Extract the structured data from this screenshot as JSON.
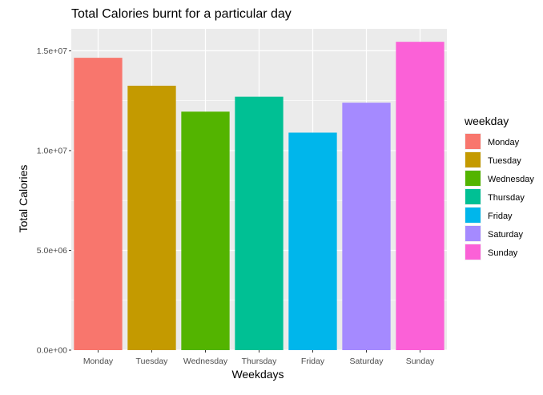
{
  "chart_data": {
    "type": "bar",
    "title": "Total Calories burnt for a particular day",
    "xlabel": "Weekdays",
    "ylabel": "Total Calories",
    "categories": [
      "Monday",
      "Tuesday",
      "Wednesday",
      "Thursday",
      "Friday",
      "Saturday",
      "Sunday"
    ],
    "values": [
      14650000,
      13250000,
      11950000,
      12700000,
      10900000,
      12400000,
      15450000
    ],
    "colors": [
      "#F8766D",
      "#C49A00",
      "#53B400",
      "#00C094",
      "#00B6EB",
      "#A58AFF",
      "#FB61D7"
    ],
    "ylim": [
      0,
      16100000
    ],
    "yticks": [
      0,
      5000000,
      10000000,
      15000000
    ],
    "ytick_labels": [
      "0.0e+00",
      "5.0e+06",
      "1.0e+07",
      "1.5e+07"
    ],
    "grid": true,
    "legend": {
      "title": "weekday",
      "position": "right",
      "entries": [
        "Monday",
        "Tuesday",
        "Wednesday",
        "Thursday",
        "Friday",
        "Saturday",
        "Sunday"
      ]
    }
  }
}
